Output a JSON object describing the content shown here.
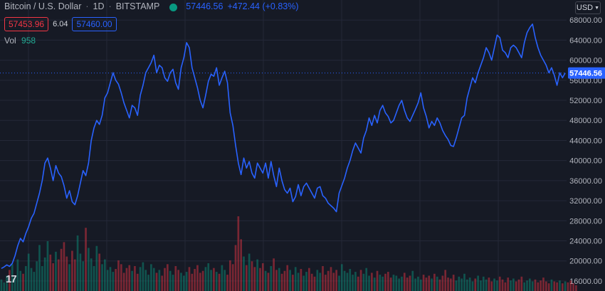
{
  "legend": {
    "symbol": "Bitcoin / U.S. Dollar",
    "interval": "1D",
    "exchange": "BITSTAMP",
    "last": "57446.56",
    "change": "+472.44 (+0.83%)"
  },
  "quote": {
    "bid": "57453.96",
    "spread": "6.04",
    "ask": "57460.00"
  },
  "volume": {
    "label": "Vol",
    "value": "958"
  },
  "currency": {
    "label": "USD"
  },
  "logo": {
    "text": "17"
  },
  "colors": {
    "background": "#161a25",
    "line": "#2962ff",
    "volume_up": "#089981",
    "volume_down": "#f23645",
    "grid": "#242838",
    "last_price_label": "#2962ff"
  },
  "chart_data": {
    "type": "line",
    "xlabel": "",
    "ylabel": "",
    "ylim": [
      14000,
      72000
    ],
    "y_ticks": [
      16000,
      20000,
      24000,
      28000,
      32000,
      36000,
      40000,
      44000,
      48000,
      52000,
      56000,
      60000,
      64000,
      68000
    ],
    "y_tick_labels": [
      "16000.00",
      "20000.00",
      "24000.00",
      "28000.00",
      "32000.00",
      "36000.00",
      "40000.00",
      "44000.00",
      "48000.00",
      "52000.00",
      "56000.00",
      "60000.00",
      "64000.00",
      "68000.00"
    ],
    "current_price": 57446.56,
    "current_price_label": "57446.56",
    "grid": true,
    "series": [
      {
        "values": [
          18500,
          18800,
          19200,
          18900,
          19500,
          21000,
          23000,
          24500,
          23800,
          25500,
          26800,
          28500,
          29500,
          31500,
          33500,
          36000,
          39500,
          40500,
          38500,
          36000,
          39000,
          37500,
          36800,
          35000,
          32500,
          34000,
          31800,
          31200,
          33000,
          35500,
          38000,
          37000,
          39500,
          44000,
          46500,
          48000,
          47200,
          49000,
          52500,
          53500,
          55500,
          57500,
          56000,
          55200,
          53500,
          51500,
          50000,
          48500,
          51000,
          50500,
          49000,
          53000,
          55000,
          57500,
          58500,
          59500,
          61000,
          57500,
          59000,
          58500,
          56500,
          55800,
          57500,
          58200,
          55500,
          54200,
          58500,
          60500,
          63500,
          62500,
          58500,
          56500,
          54500,
          52000,
          50500,
          53000,
          55800,
          57200,
          56800,
          58500,
          55000,
          56500,
          57800,
          55500,
          49500,
          47000,
          43000,
          39500,
          37200,
          40500,
          38500,
          39800,
          37500,
          36500,
          39500,
          38500,
          37500,
          39500,
          36500,
          39800,
          37000,
          34800,
          38500,
          36000,
          34200,
          33500,
          34500,
          31800,
          32800,
          35200,
          33000,
          34800,
          35500,
          34500,
          33500,
          32500,
          34500,
          34800,
          33000,
          32500,
          31500,
          31000,
          30500,
          29800,
          33500,
          35000,
          36500,
          38500,
          40000,
          42000,
          43500,
          42500,
          41500,
          44500,
          46000,
          48500,
          47000,
          49000,
          47500,
          50000,
          51000,
          49500,
          48800,
          47500,
          48000,
          49500,
          51000,
          52000,
          50000,
          48500,
          47800,
          49000,
          50200,
          51500,
          53500,
          50500,
          48800,
          46500,
          47800,
          47000,
          48500,
          47500,
          46000,
          45000,
          44200,
          43000,
          42800,
          44500,
          46500,
          48500,
          49000,
          52500,
          54500,
          56500,
          55500,
          57500,
          59000,
          60500,
          62500,
          61500,
          60000,
          62500,
          65000,
          64500,
          62000,
          61500,
          60500,
          62500,
          63000,
          62500,
          61500,
          60500,
          63500,
          65500,
          66500,
          67200,
          64500,
          62500,
          61000,
          60000,
          59000,
          57500,
          58500,
          57000,
          55000,
          57500,
          56500,
          57446.56
        ]
      }
    ],
    "volume": {
      "label": "Vol",
      "values": [
        1200,
        900,
        1600,
        2200,
        2800,
        1500,
        3300,
        2100,
        1800,
        2600,
        3900,
        2400,
        2000,
        3100,
        4800,
        2600,
        3500,
        5200,
        3800,
        2900,
        4100,
        3300,
        4400,
        5100,
        3600,
        2800,
        4200,
        3300,
        5800,
        3900,
        3100,
        6600,
        4500,
        3400,
        2600,
        4700,
        3900,
        2800,
        3300,
        2200,
        2500,
        2000,
        2300,
        3200,
        2800,
        1900,
        2400,
        2700,
        2100,
        2600,
        1800,
        2500,
        3000,
        2200,
        1700,
        2800,
        2400,
        1900,
        2200,
        1600,
        2400,
        2800,
        2100,
        1700,
        2600,
        2200,
        1900,
        1600,
        2000,
        2500,
        1800,
        2300,
        2700,
        1900,
        2100,
        2500,
        2900,
        2200,
        2400,
        2000,
        1800,
        2700,
        2200,
        1700,
        3200,
        2800,
        4800,
        7800,
        5400,
        3600,
        2700,
        3900,
        3100,
        2500,
        3300,
        2400,
        2900,
        2100,
        1900,
        2600,
        3400,
        2200,
        2400,
        1800,
        2100,
        2700,
        2200,
        1700,
        2500,
        1900,
        2300,
        1600,
        2000,
        2400,
        1800,
        1500,
        2200,
        1900,
        2600,
        1700,
        2100,
        2500,
        1900,
        2200,
        1600,
        2800,
        2100,
        1900,
        2300,
        1700,
        2000,
        1500,
        2200,
        1800,
        2400,
        1600,
        1900,
        1400,
        2100,
        1700,
        1500,
        1800,
        2000,
        1400,
        1700,
        1600,
        1300,
        1500,
        1900,
        1400,
        1600,
        2100,
        1300,
        1500,
        1200,
        1700,
        1400,
        1600,
        1300,
        1800,
        1500,
        1200,
        1600,
        2200,
        1400,
        1300,
        1700,
        1100,
        1500,
        1300,
        1800,
        1200,
        1400,
        1000,
        1300,
        1600,
        1100,
        1500,
        1200,
        1400,
        1000,
        1300,
        1100,
        1500,
        1200,
        900,
        1400,
        1100,
        1300,
        1000,
        1200,
        1500,
        900,
        1100,
        1300,
        1000,
        1200,
        900,
        1100,
        1400,
        1000,
        800,
        1200,
        1000,
        900,
        1100,
        800,
        1000,
        900,
        1100,
        800,
        600
      ]
    }
  }
}
